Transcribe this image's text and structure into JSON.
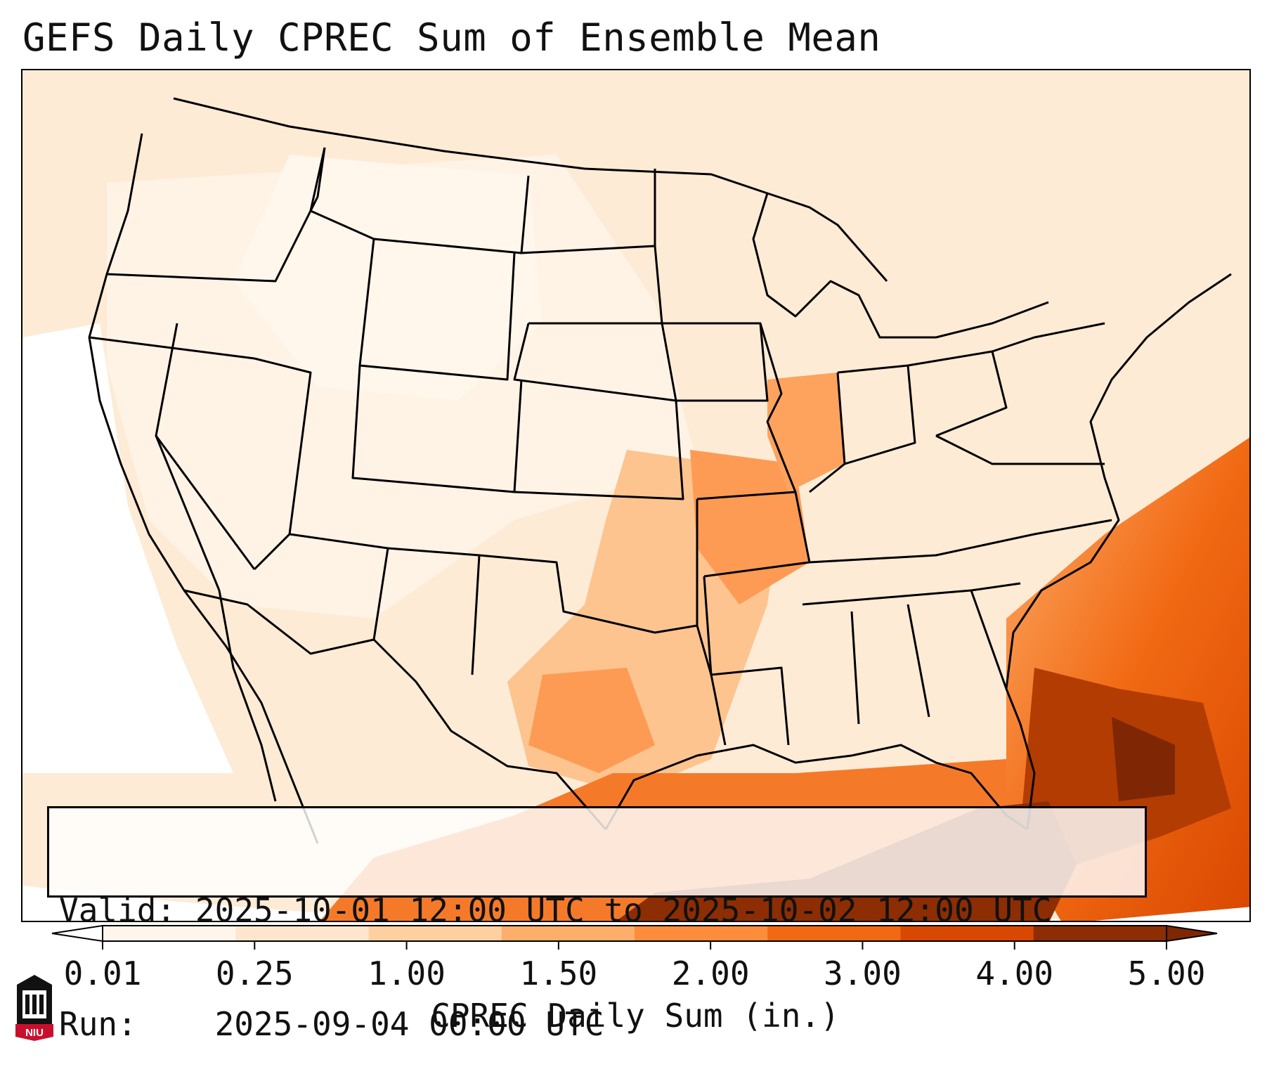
{
  "title": "GEFS Daily CPREC Sum of Ensemble Mean",
  "info": {
    "valid_label": "Valid:",
    "valid_text": "2025-10-01 12:00 UTC to 2025-10-02 12:00 UTC",
    "run_label": "Run:",
    "run_text": "2025-09-04 00:00 UTC"
  },
  "colorbar": {
    "label": "CPREC Daily Sum (in.)",
    "ticks": [
      "0.01",
      "0.25",
      "1.00",
      "1.50",
      "2.00",
      "3.00",
      "4.00",
      "5.00"
    ],
    "colors": [
      "#fff5eb",
      "#fee6ce",
      "#fdd0a2",
      "#fdae6b",
      "#fd8d3c",
      "#f16913",
      "#d94801",
      "#8c2d04"
    ],
    "under_color": "#ffffff",
    "over_color": "#7f2704"
  },
  "logo": {
    "text": "NIU",
    "color": "#c8102e"
  },
  "icons": [
    "niu-logo-icon"
  ]
}
